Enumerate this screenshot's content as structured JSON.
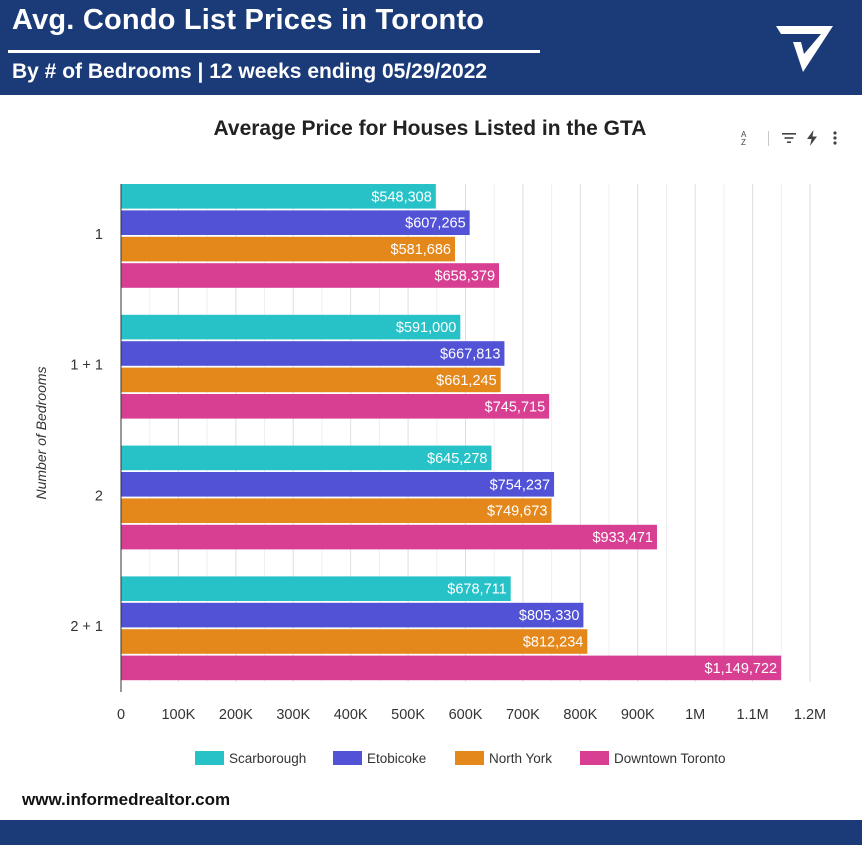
{
  "header": {
    "title": "Avg. Condo List Prices in Toronto",
    "subtitle": "By # of Bedrooms | 12 weeks ending 05/29/2022"
  },
  "logo": {
    "icon": "checkmark-triangle-logo",
    "color": "#ffffff"
  },
  "toolbar": {
    "sort_label": "A Z",
    "icons": [
      "sort-az-icon",
      "filter-icon",
      "bolt-icon",
      "more-vert-icon"
    ]
  },
  "footer": {
    "url": "www.informedrealtor.com"
  },
  "chart_data": {
    "type": "bar",
    "orientation": "horizontal",
    "title": "Average Price for Houses Listed in the GTA",
    "ylabel": "Number of Bedrooms",
    "xlabel": "",
    "categories": [
      "1",
      "1 + 1",
      "2",
      "2 + 1"
    ],
    "series": [
      {
        "name": "Scarborough",
        "color": "#26c2c7",
        "values": [
          548308,
          591000,
          645278,
          678711
        ],
        "labels": [
          "$548,308",
          "$591,000",
          "$645,278",
          "$678,711"
        ]
      },
      {
        "name": "Etobicoke",
        "color": "#5252d6",
        "values": [
          607265,
          667813,
          754237,
          805330
        ],
        "labels": [
          "$607,265",
          "$667,813",
          "$754,237",
          "$805,330"
        ]
      },
      {
        "name": "North York",
        "color": "#e5881b",
        "values": [
          581686,
          661245,
          749673,
          812234
        ],
        "labels": [
          "$581,686",
          "$661,245",
          "$749,673",
          "$812,234"
        ]
      },
      {
        "name": "Downtown Toronto",
        "color": "#d83f93",
        "values": [
          658379,
          745715,
          933471,
          1149722
        ],
        "labels": [
          "$658,379",
          "$745,715",
          "$933,471",
          "$1,149,722"
        ]
      }
    ],
    "xlim": [
      0,
      1200000
    ],
    "xticks": [
      0,
      100000,
      200000,
      300000,
      400000,
      500000,
      600000,
      700000,
      800000,
      900000,
      1000000,
      1100000,
      1200000
    ],
    "xtick_labels": [
      "0",
      "100K",
      "200K",
      "300K",
      "400K",
      "500K",
      "600K",
      "700K",
      "800K",
      "900K",
      "1M",
      "1.1M",
      "1.2M"
    ],
    "grid": true,
    "legend_position": "bottom"
  }
}
